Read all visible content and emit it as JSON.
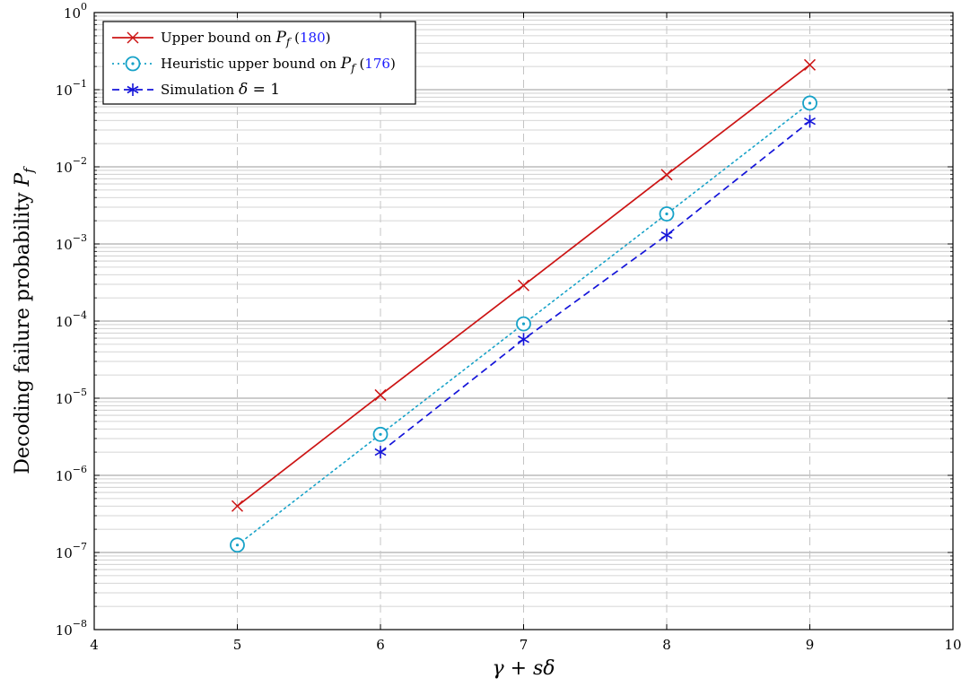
{
  "chart_data": {
    "type": "line",
    "xlabel": "γ + sδ",
    "ylabel_main": "Decoding failure probability",
    "ylabel_symbol": "P",
    "ylabel_sub": "f",
    "xlim": [
      4,
      10
    ],
    "ylim": [
      1e-08,
      1
    ],
    "yscale": "log",
    "grid": true,
    "legend_placement": "top-left",
    "x_ticks": [
      4,
      5,
      6,
      7,
      8,
      9,
      10
    ],
    "y_tick_exponents": [
      0,
      -1,
      -2,
      -3,
      -4,
      -5,
      -6,
      -7,
      -8
    ],
    "y_tick_base": "10",
    "series": [
      {
        "name": "Upper bound on P_f (180)",
        "legend_pre": "Upper bound on ",
        "legend_sym": "P",
        "legend_sub": "f",
        "legend_ref": "(180)",
        "color": "#cc1414",
        "line": "solid",
        "marker": "x",
        "x": [
          5,
          6,
          7,
          8,
          9
        ],
        "y": [
          4e-07,
          1.1e-05,
          0.00029,
          0.0079,
          0.21
        ]
      },
      {
        "name": "Heuristic upper bound on P_f (176)",
        "legend_pre": "Heuristic upper bound on ",
        "legend_sym": "P",
        "legend_sub": "f",
        "legend_ref": "(176)",
        "color": "#17a2c8",
        "line": "dotted",
        "marker": "circle-dot",
        "x": [
          5,
          6,
          7,
          8,
          9
        ],
        "y": [
          1.25e-07,
          3.4e-06,
          9.2e-05,
          0.00245,
          0.067
        ]
      },
      {
        "name": "Simulation δ = 1",
        "legend_pre": "Simulation ",
        "legend_sym": "δ",
        "legend_sub": "",
        "legend_ref": "",
        "legend_post": " = 1",
        "color": "#1414d9",
        "line": "dashed",
        "marker": "asterisk",
        "x": [
          6,
          7,
          8,
          9
        ],
        "y": [
          2e-06,
          5.8e-05,
          0.0013,
          0.039
        ]
      }
    ]
  }
}
